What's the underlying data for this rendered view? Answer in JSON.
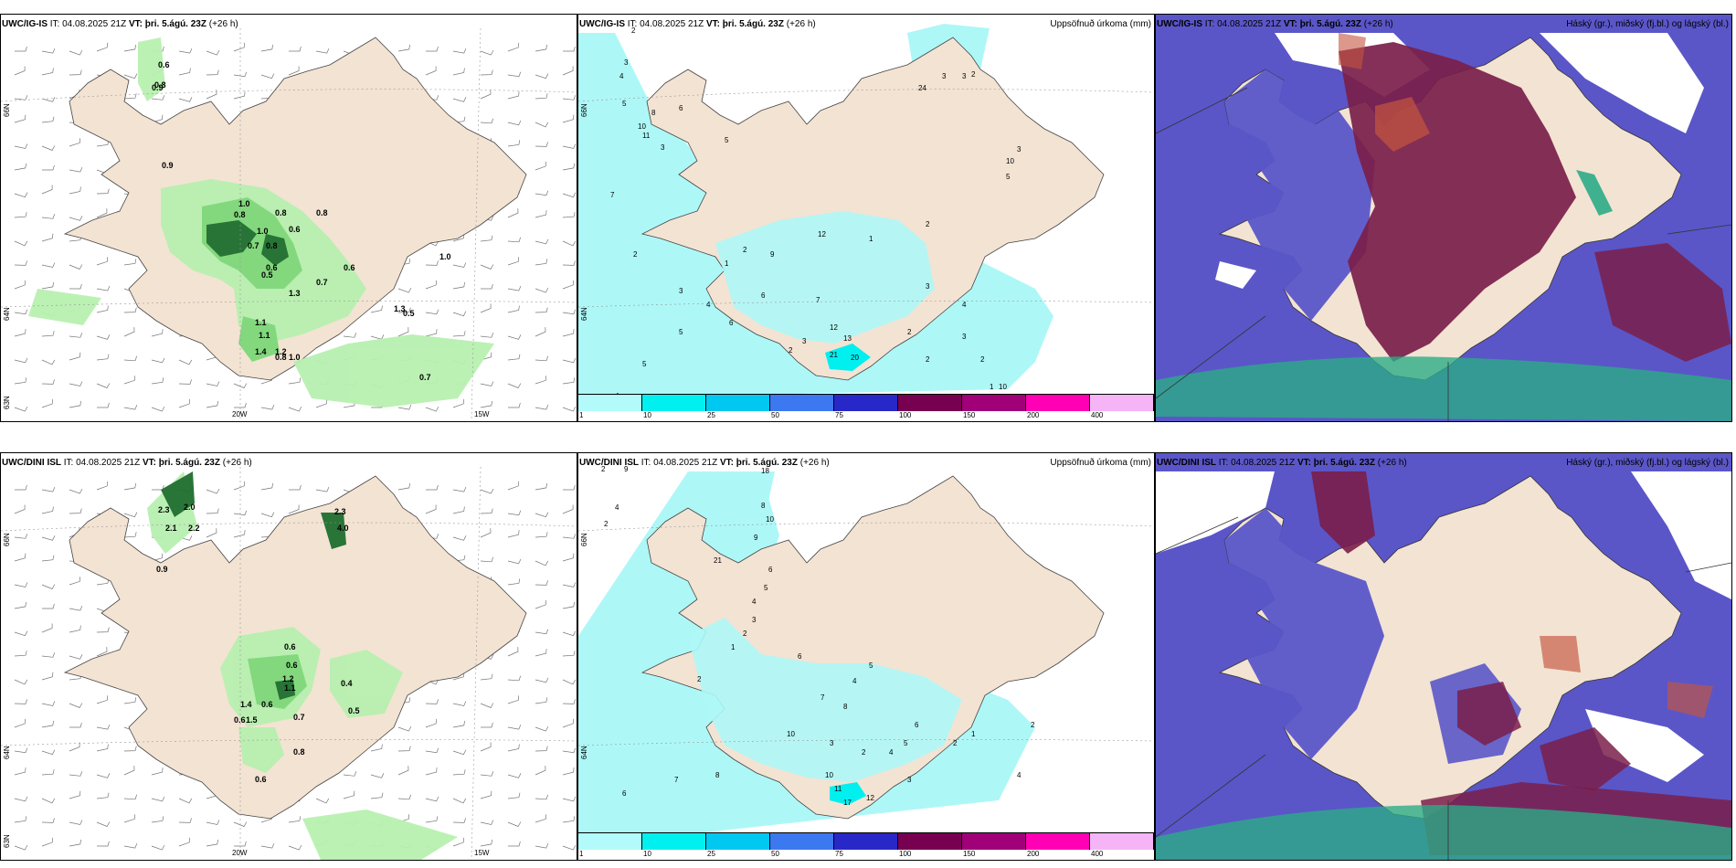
{
  "panels": {
    "top_wind": {
      "model": "UWC/IG-IS",
      "it": " IT: 04.08.2025 21Z ",
      "vt_label": "VT:",
      "vt": " þri. 5.ágú. 23Z",
      "lead": " (+26 h)",
      "right": ""
    },
    "top_precip": {
      "model": "UWC/IG-IS",
      "it": " IT: 04.08.2025 21Z ",
      "vt_label": "VT:",
      "vt": " þri. 5.ágú. 23Z",
      "lead": " (+26 h)",
      "right": "Uppsöfnuð úrkoma (mm)"
    },
    "top_cloud": {
      "model": "UWC/IG-IS",
      "it": " IT: 04.08.2025 21Z ",
      "vt_label": "VT:",
      "vt": " þri. 5.ágú. 23Z",
      "lead": " (+26 h)",
      "right": "Háský (gr.), miðský (fj.bl.) og lágský (bl.)"
    },
    "bot_wind": {
      "model": "UWC/DINI ISL",
      "it": " IT: 04.08.2025 21Z ",
      "vt_label": "VT:",
      "vt": " þri. 5.ágú. 23Z",
      "lead": " (+26 h)",
      "right": ""
    },
    "bot_precip": {
      "model": "UWC/DINI ISL",
      "it": " IT: 04.08.2025 21Z ",
      "vt_label": "VT:",
      "vt": " þri. 5.ágú. 23Z",
      "lead": " (+26 h)",
      "right": "Uppsöfnuð úrkoma (mm)"
    },
    "bot_cloud": {
      "model": "UWC/DINI ISL",
      "it": " IT: 04.08.2025 21Z ",
      "vt_label": "VT:",
      "vt": " þri. 5.ágú. 23Z",
      "lead": " (+26 h)",
      "right": "Háský (gr.), miðský (fj.bl.) og lágský (bl.)"
    }
  },
  "axis_labels": {
    "lat66": "66N",
    "lat64": "64N",
    "lat63": "63N",
    "lon20": "20W",
    "lon15": "15W"
  },
  "legend": {
    "colors": [
      "#b3fbfb",
      "#00f0f0",
      "#00c8f0",
      "#3c78f0",
      "#2828c8",
      "#780050",
      "#a00078",
      "#ff00b4",
      "#f5b4f5"
    ],
    "ticks": [
      "1",
      "10",
      "25",
      "50",
      "75",
      "100",
      "150",
      "200",
      "400"
    ]
  },
  "colors": {
    "land": "#f3e3d3",
    "light_green": "#b8f0b0",
    "mid_green": "#7ed87a",
    "dark_green": "#1e6e2e",
    "cyan": "#aef7f7",
    "cloud_blue": "#5a56c8",
    "cloud_maroon": "#7a1e4a",
    "cloud_green": "#2cab86"
  },
  "precip_labels": {
    "top_wind": [
      "0.6",
      "0.8",
      "0.9",
      "0.9",
      "1.0",
      "0.8",
      "0.8",
      "0.8",
      "1.0",
      "0.6",
      "0.7",
      "0.8",
      "0.6",
      "0.5",
      "0.7",
      "0.6",
      "1.0",
      "1.1",
      "1.1",
      "1.4",
      "1.2",
      "0.8",
      "1.0",
      "1.3",
      "1.3",
      "0.5",
      "0.7"
    ],
    "top_precip": [
      "2",
      "3",
      "4",
      "5",
      "6",
      "8",
      "10",
      "11",
      "3",
      "5",
      "7",
      "2",
      "1",
      "2",
      "3",
      "4",
      "5",
      "6",
      "9",
      "12",
      "7",
      "3",
      "2",
      "1",
      "2",
      "3",
      "4",
      "5",
      "6",
      "12",
      "13",
      "21",
      "20",
      "2",
      "3",
      "4",
      "2",
      "1",
      "10",
      "10",
      "5",
      "3",
      "2",
      "24",
      "3",
      "3",
      "2"
    ],
    "bot_wind": [
      "2.3",
      "2.0",
      "2.1",
      "2.2",
      "0.9",
      "2.3",
      "4.0",
      "0.6",
      "0.6",
      "1.2",
      "1.1",
      "1.4",
      "0.6",
      "0.6",
      "1.5",
      "0.7",
      "0.5",
      "0.8",
      "0.6",
      "0.4"
    ],
    "bot_precip": [
      "2",
      "9",
      "4",
      "2",
      "18",
      "8",
      "10",
      "9",
      "6",
      "5",
      "4",
      "3",
      "2",
      "1",
      "21",
      "2",
      "6",
      "4",
      "5",
      "7",
      "8",
      "10",
      "11",
      "17",
      "12",
      "3",
      "2",
      "1",
      "2",
      "4",
      "5",
      "6",
      "7",
      "8",
      "10",
      "3",
      "2",
      "4",
      "5",
      "6"
    ]
  }
}
